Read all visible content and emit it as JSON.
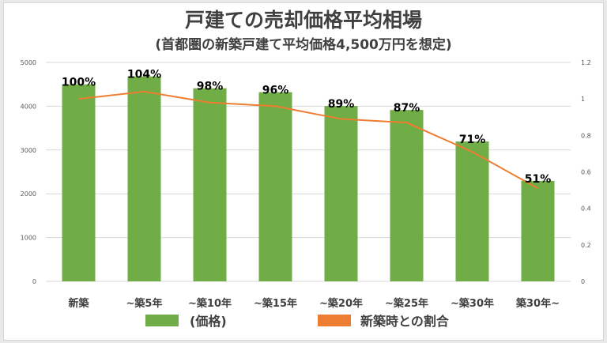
{
  "chart_data": {
    "type": "bar+line",
    "title": "戸建ての売却価格平均相場",
    "subtitle": "(首都圏の新築戸建て平均価格4,500万円を想定)",
    "categories": [
      "新築",
      "~築5年",
      "~築10年",
      "~築15年",
      "~築20年",
      "~築25年",
      "~築30年",
      "築30年~"
    ],
    "series": [
      {
        "name": "(価格)",
        "type": "bar",
        "axis": "left",
        "color": "#70ad47",
        "values": [
          4500,
          4680,
          4410,
          4320,
          4005,
          3915,
          3195,
          2295
        ]
      },
      {
        "name": "新築時との割合",
        "type": "line",
        "axis": "right",
        "color": "#ed7d31",
        "values": [
          1.0,
          1.04,
          0.98,
          0.96,
          0.89,
          0.87,
          0.71,
          0.51
        ]
      }
    ],
    "data_labels": [
      "100%",
      "104%",
      "98%",
      "96%",
      "89%",
      "87%",
      "71%",
      "51%"
    ],
    "left_axis": {
      "ylim": [
        0,
        5000
      ],
      "ticks": [
        "0",
        "1000",
        "2000",
        "3000",
        "4000",
        "5000"
      ]
    },
    "right_axis": {
      "ylim": [
        0,
        1.2
      ],
      "ticks": [
        "0",
        "0.2",
        "0.4",
        "0.6",
        "0.8",
        "1",
        "1.2"
      ]
    },
    "grid": true,
    "legend": "bottom"
  }
}
